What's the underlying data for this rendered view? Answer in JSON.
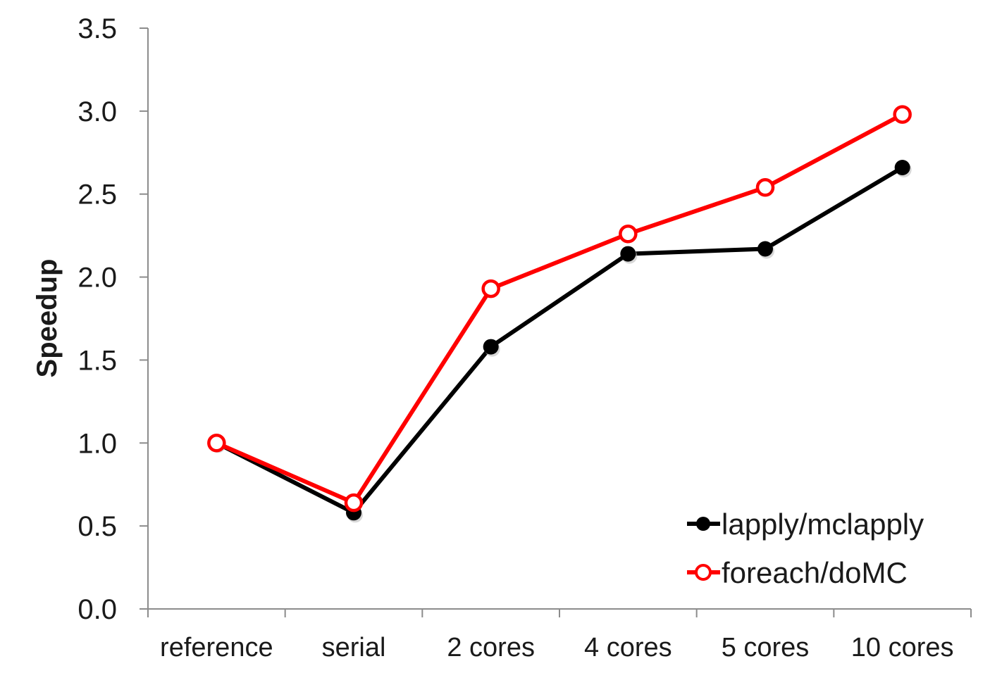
{
  "chart_data": {
    "type": "line",
    "categories": [
      "reference",
      "serial",
      "2 cores",
      "4 cores",
      "5 cores",
      "10 cores"
    ],
    "series": [
      {
        "name": "lapply/mclapply",
        "values": [
          1.0,
          0.58,
          1.58,
          2.14,
          2.17,
          2.66
        ],
        "color": "#000000",
        "marker": "filled-circle"
      },
      {
        "name": "foreach/doMC",
        "values": [
          1.0,
          0.64,
          1.93,
          2.26,
          2.54,
          2.98
        ],
        "color": "#ff0000",
        "marker": "open-circle"
      }
    ],
    "ylabel": "Speedup",
    "xlabel": "",
    "ylim": [
      0,
      3.5
    ],
    "yticks": [
      "0.0",
      "0.5",
      "1.0",
      "1.5",
      "2.0",
      "2.5",
      "3.0",
      "3.5"
    ],
    "grid": false,
    "legend": "bottom-right"
  }
}
